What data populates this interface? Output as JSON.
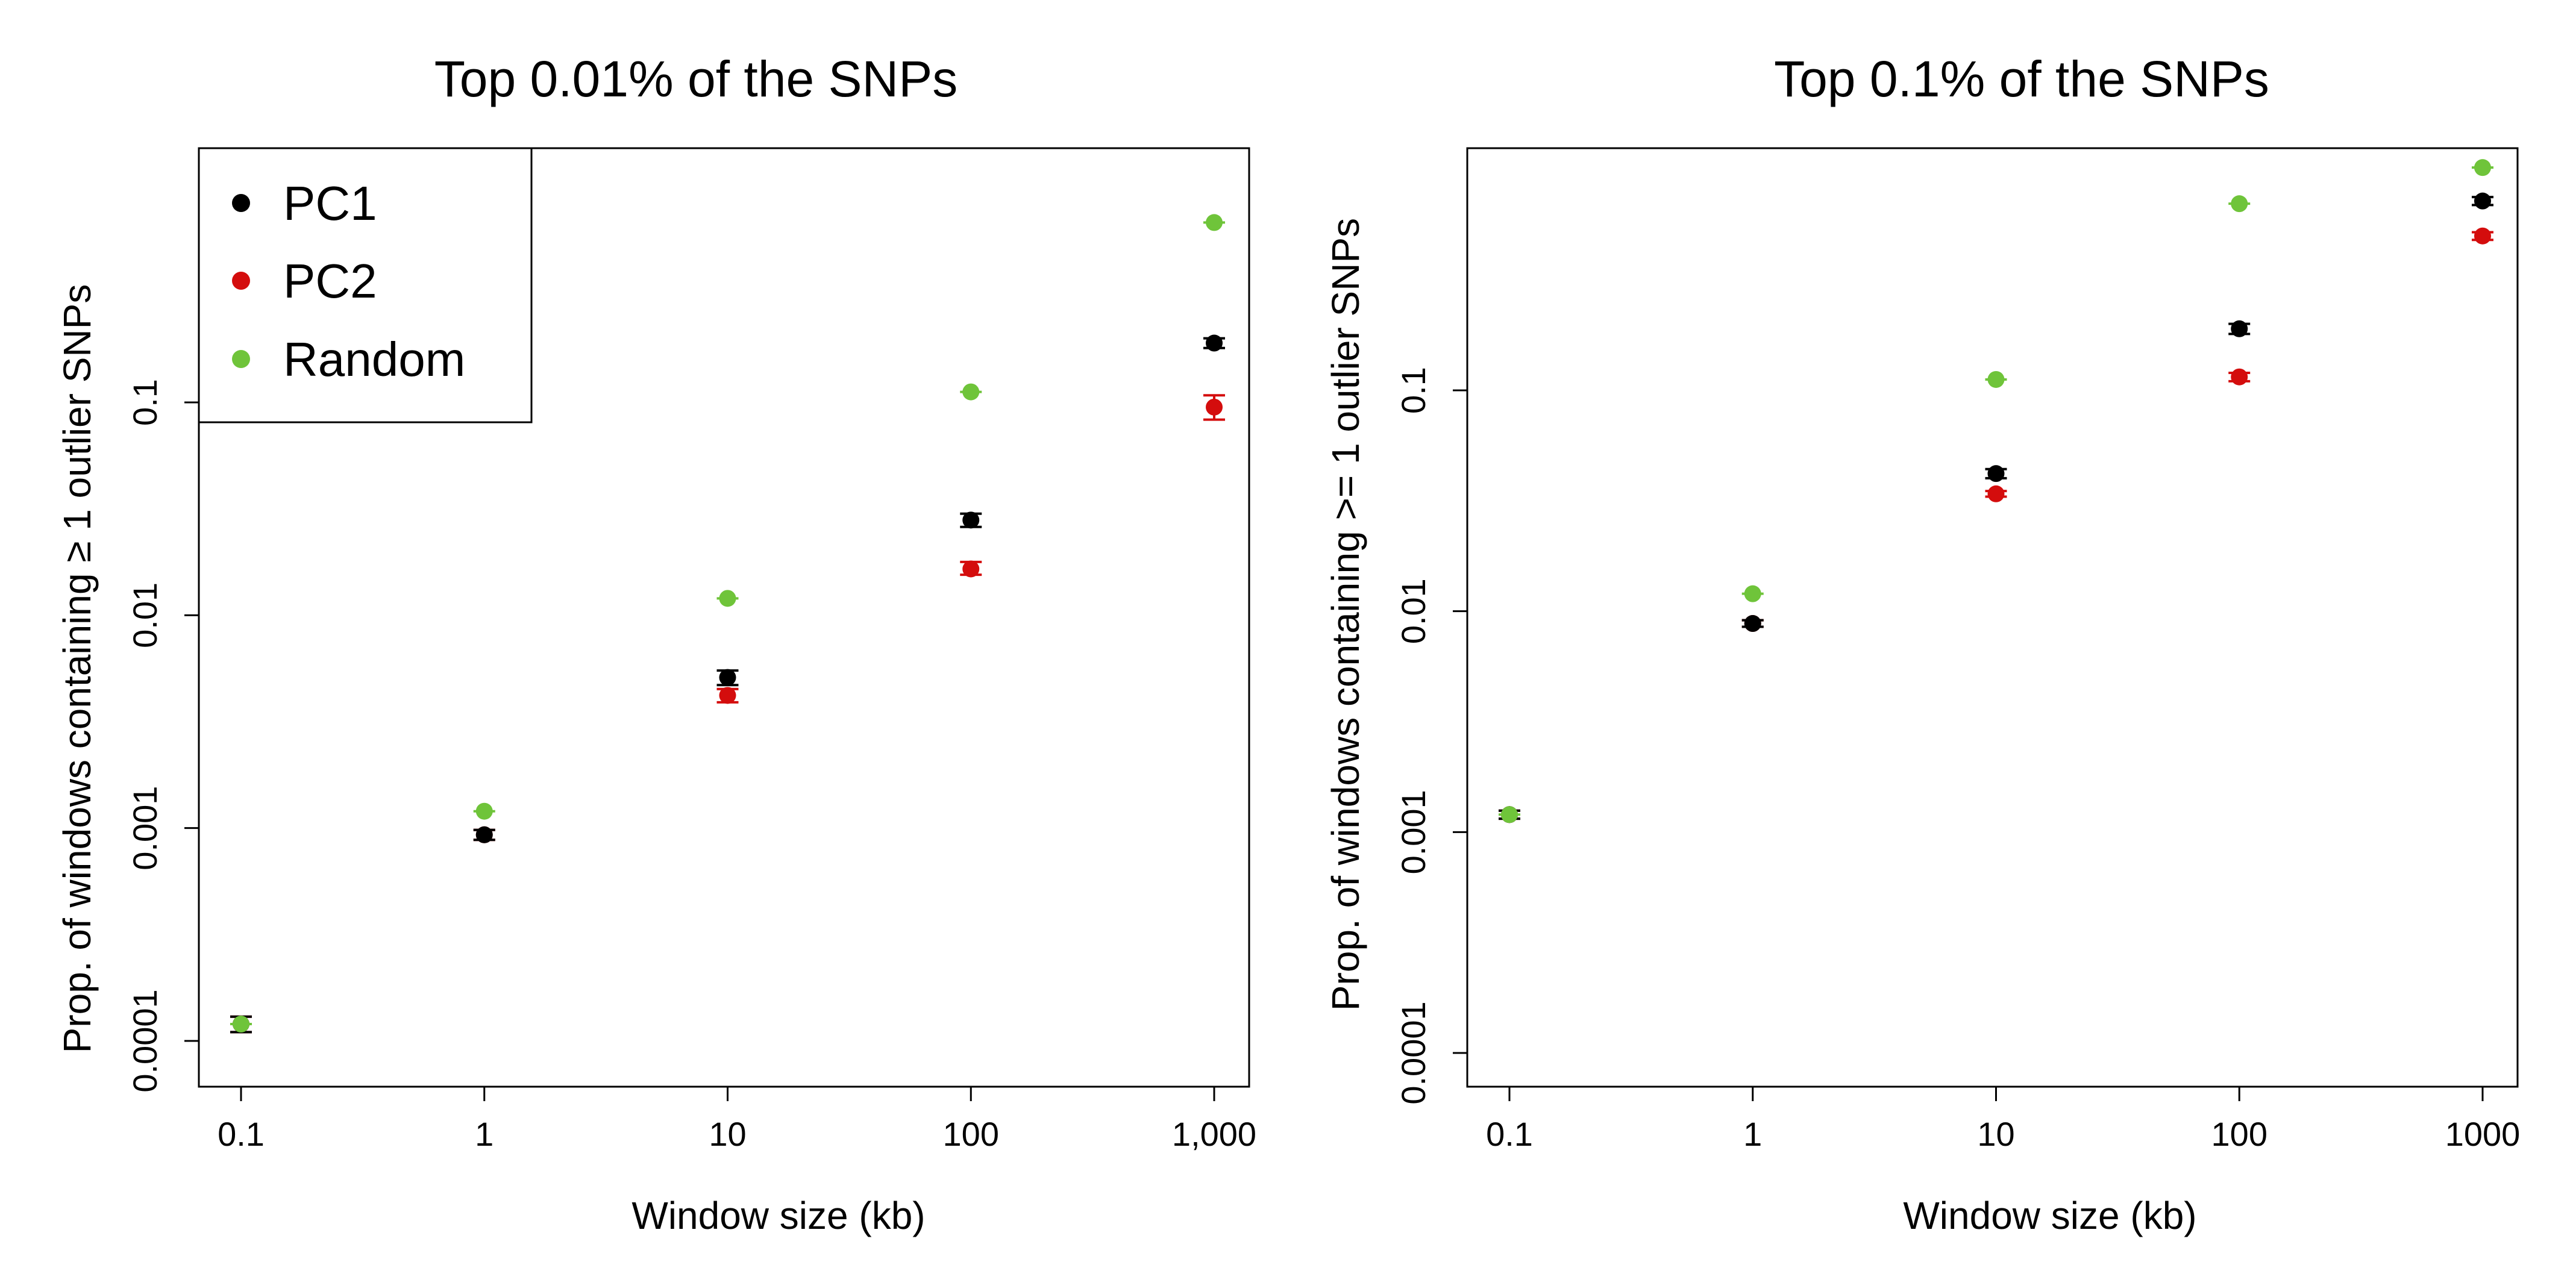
{
  "colors": {
    "PC1": "#000000",
    "PC2": "#d40d0d",
    "Random": "#6fc43a"
  },
  "legend": [
    {
      "name": "PC1",
      "label": "PC1",
      "color_key": "PC1"
    },
    {
      "name": "PC2",
      "label": "PC2",
      "color_key": "PC2"
    },
    {
      "name": "Random",
      "label": "Random",
      "color_key": "Random"
    }
  ],
  "chart_data": [
    {
      "type": "scatter",
      "title": "Top 0.01% of the SNPs",
      "xlabel": "Window size (kb)",
      "ylabel": "Prop. of windows containing ≥ 1 outlier SNPs",
      "x_scale": "log",
      "y_scale": "log",
      "xlim": [
        0.1,
        1000
      ],
      "ylim": [
        0.0001,
        1
      ],
      "x_ticks": [
        0.1,
        1,
        10,
        100,
        1000
      ],
      "x_tick_labels": [
        "0.1",
        "1",
        "10",
        "100",
        "1,000"
      ],
      "y_ticks": [
        0.0001,
        0.001,
        0.01,
        0.1
      ],
      "y_tick_labels": [
        "0.0001",
        "0.001",
        "0.01",
        "0.1"
      ],
      "legend_position": "top-left",
      "x": [
        0.1,
        1,
        10,
        100,
        1000
      ],
      "series": [
        {
          "name": "PC1",
          "values": [
            0.00012,
            0.00093,
            0.0051,
            0.028,
            0.19
          ],
          "err_low": [
            0.00011,
            0.00088,
            0.0047,
            0.026,
            0.18
          ],
          "err_high": [
            0.00013,
            0.00098,
            0.0055,
            0.03,
            0.2
          ]
        },
        {
          "name": "PC2",
          "values": [
            0.00012,
            0.00093,
            0.0042,
            0.0165,
            0.095
          ],
          "err_low": [
            0.00011,
            0.00088,
            0.0039,
            0.0155,
            0.083
          ],
          "err_high": [
            0.00013,
            0.00098,
            0.0045,
            0.0178,
            0.108
          ]
        },
        {
          "name": "Random",
          "values": [
            0.00012,
            0.0012,
            0.012,
            0.112,
            0.7
          ],
          "err_low": [
            0.00012,
            0.0012,
            0.012,
            0.112,
            0.7
          ],
          "err_high": [
            0.00012,
            0.0012,
            0.012,
            0.112,
            0.7
          ]
        }
      ]
    },
    {
      "type": "scatter",
      "title": "Top 0.1% of the SNPs",
      "xlabel": "Window size (kb)",
      "ylabel": "Prop. of windows containing >= 1 outlier SNPs",
      "x_scale": "log",
      "y_scale": "log",
      "xlim": [
        0.1,
        1000
      ],
      "ylim": [
        0.0001,
        1
      ],
      "x_ticks": [
        0.1,
        1,
        10,
        100,
        1000
      ],
      "x_tick_labels": [
        "0.1",
        "1",
        "10",
        "100",
        "1000"
      ],
      "y_ticks": [
        0.0001,
        0.001,
        0.01,
        0.1
      ],
      "y_tick_labels": [
        "0.0001",
        "0.001",
        "0.01",
        "0.1"
      ],
      "x": [
        0.1,
        1,
        10,
        100,
        1000
      ],
      "series": [
        {
          "name": "PC1",
          "values": [
            0.0012,
            0.0088,
            0.042,
            0.19,
            0.72
          ],
          "err_low": [
            0.00115,
            0.0085,
            0.04,
            0.18,
            0.69
          ],
          "err_high": [
            0.00125,
            0.0091,
            0.044,
            0.2,
            0.75
          ]
        },
        {
          "name": "PC2",
          "values": [
            0.0012,
            0.0088,
            0.034,
            0.115,
            0.5
          ],
          "err_low": [
            0.00115,
            0.0085,
            0.033,
            0.11,
            0.48
          ],
          "err_high": [
            0.00125,
            0.0091,
            0.035,
            0.12,
            0.52
          ]
        },
        {
          "name": "Random",
          "values": [
            0.0012,
            0.012,
            0.112,
            0.7,
            1.02
          ],
          "err_low": [
            0.0012,
            0.012,
            0.112,
            0.7,
            1.02
          ],
          "err_high": [
            0.0012,
            0.012,
            0.112,
            0.7,
            1.02
          ]
        }
      ]
    }
  ]
}
